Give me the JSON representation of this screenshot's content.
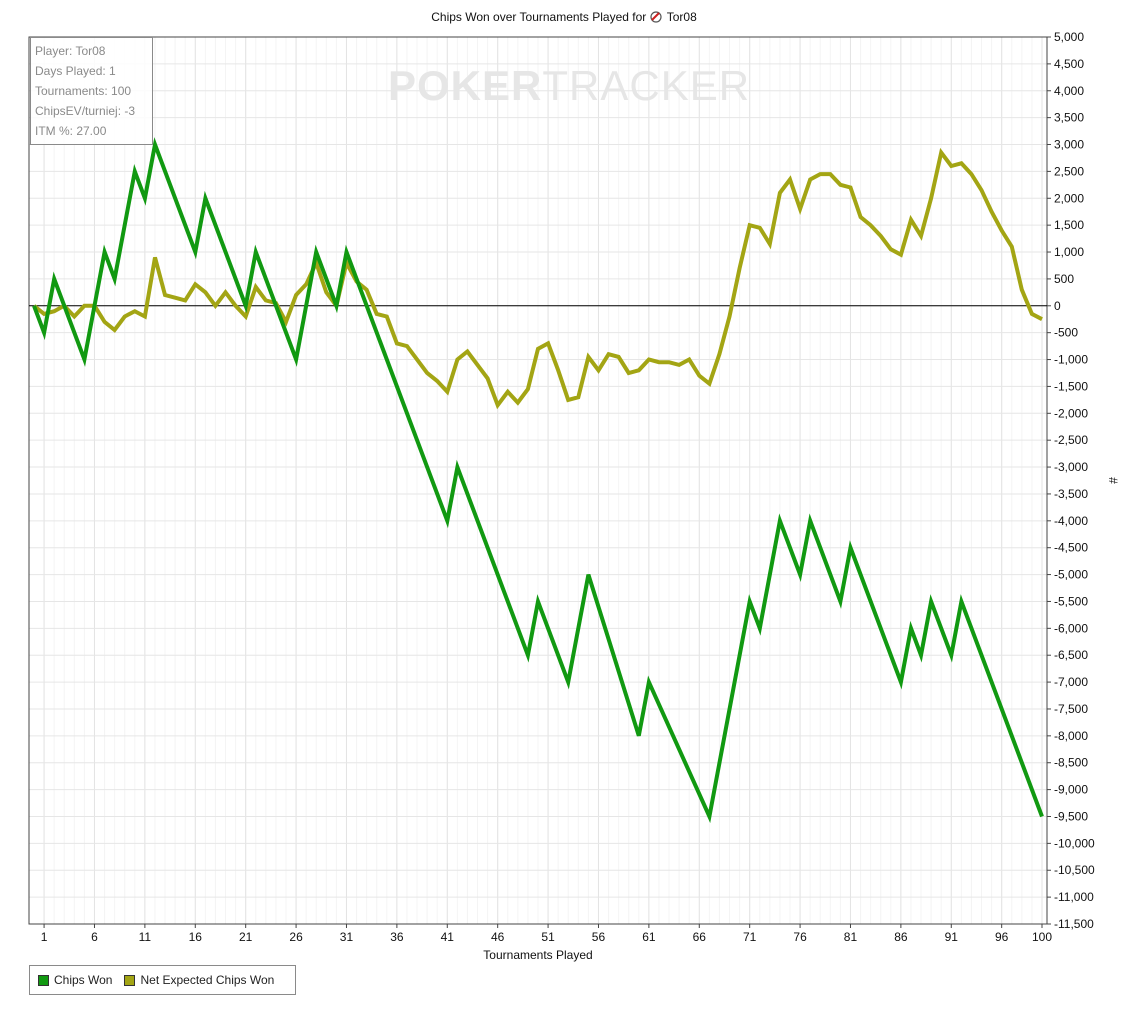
{
  "title": "Chips Won over Tournaments Played for",
  "player_name": "Tor08",
  "watermark": {
    "left": "POKER",
    "right": "TRACKER"
  },
  "info_box": [
    "Player: Tor08",
    "Days Played: 1",
    "Tournaments: 100",
    "ChipsEV/turniej: -3",
    "ITM %: 27.00"
  ],
  "chart_data": {
    "type": "line",
    "title": "Chips Won over Tournaments Played for Tor08",
    "xlabel": "Tournaments Played",
    "ylabel": "#",
    "xlim": [
      0,
      100
    ],
    "ylim": [
      -11500,
      5000
    ],
    "x_ticks": [
      1,
      6,
      11,
      16,
      21,
      26,
      31,
      36,
      41,
      46,
      51,
      56,
      61,
      66,
      71,
      76,
      81,
      86,
      91,
      96,
      100
    ],
    "y_tick_step": 500,
    "y_tick_labels": [
      "5,000",
      "4,500",
      "4,000",
      "3,500",
      "3,000",
      "2,500",
      "2,000",
      "1,500",
      "1,000",
      "500",
      "0",
      "-500",
      "-1,000",
      "-1,500",
      "-2,000",
      "-2,500",
      "-3,000",
      "-3,500",
      "-4,000",
      "-4,500",
      "-5,000",
      "-5,500",
      "-6,000",
      "-6,500",
      "-7,000",
      "-7,500",
      "-8,000",
      "-8,500",
      "-9,000",
      "-9,500",
      "-10,000",
      "-10,500",
      "-11,000",
      "-11,500"
    ],
    "grid": true,
    "legend_position": "bottom-left",
    "series": [
      {
        "name": "Chips Won",
        "color": "#119911",
        "points": [
          [
            0,
            0
          ],
          [
            1,
            -500
          ],
          [
            2,
            500
          ],
          [
            5,
            -1000
          ],
          [
            7,
            1000
          ],
          [
            8,
            500
          ],
          [
            10,
            2500
          ],
          [
            11,
            2000
          ],
          [
            12,
            3000
          ],
          [
            16,
            1000
          ],
          [
            17,
            2000
          ],
          [
            21,
            0
          ],
          [
            22,
            1000
          ],
          [
            26,
            -1000
          ],
          [
            28,
            1000
          ],
          [
            30,
            0
          ],
          [
            31,
            1000
          ],
          [
            41,
            -4000
          ],
          [
            42,
            -3000
          ],
          [
            49,
            -6500
          ],
          [
            50,
            -5500
          ],
          [
            53,
            -7000
          ],
          [
            55,
            -5000
          ],
          [
            60,
            -8000
          ],
          [
            61,
            -7000
          ],
          [
            67,
            -9500
          ],
          [
            71,
            -5500
          ],
          [
            72,
            -6000
          ],
          [
            74,
            -4000
          ],
          [
            76,
            -5000
          ],
          [
            77,
            -4000
          ],
          [
            80,
            -5500
          ],
          [
            81,
            -4500
          ],
          [
            86,
            -7000
          ],
          [
            87,
            -6000
          ],
          [
            88,
            -6500
          ],
          [
            89,
            -5500
          ],
          [
            91,
            -6500
          ],
          [
            92,
            -5500
          ],
          [
            100,
            -9500
          ]
        ]
      },
      {
        "name": "Net Expected Chips Won",
        "color": "#a3a514",
        "points": [
          [
            0,
            0
          ],
          [
            1,
            -150
          ],
          [
            2,
            -100
          ],
          [
            3,
            0
          ],
          [
            4,
            -200
          ],
          [
            5,
            0
          ],
          [
            6,
            0
          ],
          [
            7,
            -300
          ],
          [
            8,
            -450
          ],
          [
            9,
            -200
          ],
          [
            10,
            -100
          ],
          [
            11,
            -200
          ],
          [
            12,
            900
          ],
          [
            13,
            200
          ],
          [
            14,
            150
          ],
          [
            15,
            100
          ],
          [
            16,
            400
          ],
          [
            17,
            250
          ],
          [
            18,
            0
          ],
          [
            19,
            250
          ],
          [
            20,
            0
          ],
          [
            21,
            -200
          ],
          [
            22,
            350
          ],
          [
            23,
            100
          ],
          [
            24,
            50
          ],
          [
            25,
            -300
          ],
          [
            26,
            200
          ],
          [
            27,
            400
          ],
          [
            28,
            800
          ],
          [
            29,
            250
          ],
          [
            30,
            0
          ],
          [
            31,
            800
          ],
          [
            32,
            450
          ],
          [
            33,
            300
          ],
          [
            34,
            -150
          ],
          [
            35,
            -200
          ],
          [
            36,
            -700
          ],
          [
            37,
            -750
          ],
          [
            39,
            -1250
          ],
          [
            40,
            -1400
          ],
          [
            41,
            -1600
          ],
          [
            42,
            -1000
          ],
          [
            43,
            -850
          ],
          [
            44,
            -1100
          ],
          [
            45,
            -1350
          ],
          [
            46,
            -1850
          ],
          [
            47,
            -1600
          ],
          [
            48,
            -1800
          ],
          [
            49,
            -1550
          ],
          [
            50,
            -800
          ],
          [
            51,
            -700
          ],
          [
            52,
            -1200
          ],
          [
            53,
            -1750
          ],
          [
            54,
            -1700
          ],
          [
            55,
            -950
          ],
          [
            56,
            -1200
          ],
          [
            57,
            -900
          ],
          [
            58,
            -950
          ],
          [
            59,
            -1250
          ],
          [
            60,
            -1200
          ],
          [
            61,
            -1000
          ],
          [
            62,
            -1050
          ],
          [
            63,
            -1050
          ],
          [
            64,
            -1100
          ],
          [
            65,
            -1000
          ],
          [
            66,
            -1300
          ],
          [
            67,
            -1450
          ],
          [
            68,
            -900
          ],
          [
            69,
            -200
          ],
          [
            70,
            700
          ],
          [
            71,
            1500
          ],
          [
            72,
            1450
          ],
          [
            73,
            1150
          ],
          [
            74,
            2100
          ],
          [
            75,
            2350
          ],
          [
            76,
            1800
          ],
          [
            77,
            2350
          ],
          [
            78,
            2450
          ],
          [
            79,
            2450
          ],
          [
            80,
            2250
          ],
          [
            81,
            2200
          ],
          [
            82,
            1650
          ],
          [
            83,
            1500
          ],
          [
            84,
            1300
          ],
          [
            85,
            1050
          ],
          [
            86,
            950
          ],
          [
            87,
            1600
          ],
          [
            88,
            1300
          ],
          [
            89,
            2000
          ],
          [
            90,
            2850
          ],
          [
            91,
            2600
          ],
          [
            92,
            2650
          ],
          [
            93,
            2450
          ],
          [
            94,
            2150
          ],
          [
            95,
            1750
          ],
          [
            96,
            1400
          ],
          [
            97,
            1100
          ],
          [
            98,
            300
          ],
          [
            99,
            -150
          ],
          [
            100,
            -250
          ]
        ]
      }
    ]
  }
}
